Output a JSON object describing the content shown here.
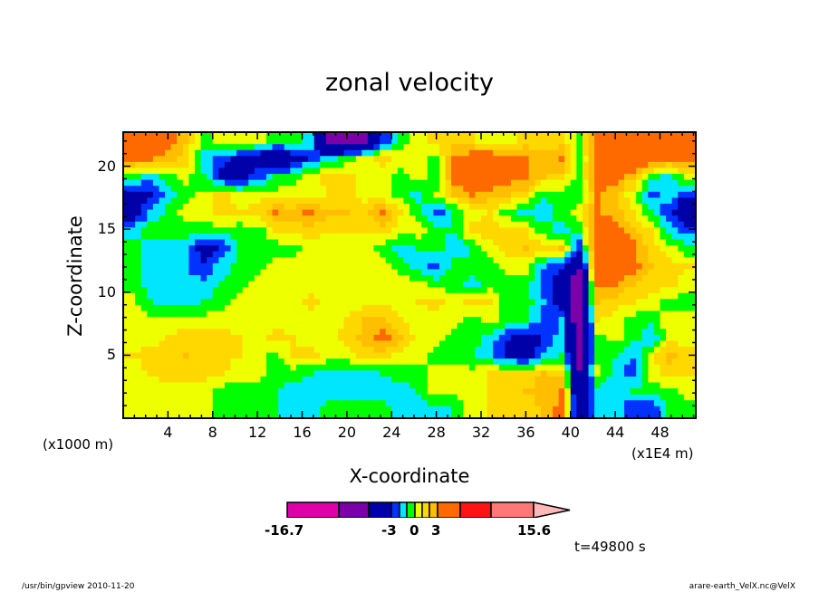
{
  "chart_data": {
    "type": "heatmap",
    "title": "zonal velocity",
    "xlabel": "X-coordinate",
    "ylabel": "Z-coordinate",
    "x_unit_left": "(x1000 m)",
    "x_unit_right": "(x1E4 m)",
    "xlim": [
      0,
      51.2
    ],
    "ylim": [
      0,
      22.7
    ],
    "xticks": [
      "4",
      "8",
      "12",
      "16",
      "20",
      "24",
      "28",
      "32",
      "36",
      "40",
      "44",
      "48"
    ],
    "xtick_values": [
      4,
      8,
      12,
      16,
      20,
      24,
      28,
      32,
      36,
      40,
      44,
      48
    ],
    "yticks": [
      "5",
      "10",
      "15",
      "20"
    ],
    "ytick_values": [
      5,
      10,
      15,
      20
    ],
    "grid_note": "rows top (z high) to bottom, 32 columns across x",
    "values": [
      [
        4.5,
        4.5,
        3.5,
        2,
        -0.5,
        0.5,
        0.5,
        0.5,
        -0.5,
        -0.5,
        -1.5,
        -8,
        -8,
        -7,
        -3,
        -0.5,
        0.5,
        1.5,
        1.5,
        1,
        0.5,
        0.5,
        1.5,
        1,
        1.5,
        -0.5,
        4.5,
        5,
        4.5,
        4.5,
        4.5,
        4.5
      ],
      [
        3.5,
        3,
        2.5,
        1.5,
        -1.5,
        -2.5,
        -3.5,
        -4,
        -6,
        -4,
        -2.5,
        -1.5,
        -0.5,
        0.5,
        1.5,
        0.5,
        0.5,
        -0.5,
        3.5,
        4,
        4.5,
        3.5,
        3,
        2.5,
        3,
        -0.5,
        4,
        4.5,
        5,
        4.5,
        3.5,
        3.5
      ],
      [
        -0.5,
        -1.5,
        -0.5,
        0.5,
        -1,
        -3.5,
        -4,
        -2.5,
        -1,
        -0.5,
        0.5,
        1.5,
        1.5,
        0.5,
        0.5,
        -0.5,
        0.5,
        -1,
        3.5,
        4.5,
        4.5,
        3.5,
        3,
        2,
        1.5,
        -0.5,
        4.5,
        3.5,
        2,
        -0.5,
        -1.5,
        0.5
      ],
      [
        -4,
        -3.5,
        -1.5,
        -0.5,
        0.5,
        1.5,
        0.5,
        0.5,
        0.5,
        0.5,
        0.5,
        1,
        1.5,
        0.5,
        0.5,
        -0.5,
        -1.5,
        0.5,
        2,
        3,
        2.5,
        2,
        1.5,
        -1,
        -0.5,
        -0.5,
        3,
        2,
        0.5,
        -2.5,
        -1.5,
        -3
      ],
      [
        -4,
        -2,
        -0.5,
        0.5,
        0.5,
        1.5,
        1,
        1.5,
        3,
        2.5,
        3.5,
        2,
        2,
        1.5,
        3.5,
        1,
        -0.5,
        -2.5,
        -1,
        0.5,
        1,
        -0.5,
        -1.5,
        -1.5,
        -0.5,
        0.5,
        3,
        2.5,
        1,
        -0.5,
        -3,
        -4.5
      ],
      [
        -1.5,
        -0.5,
        -0.5,
        -0.5,
        -0.5,
        -0.5,
        -0.5,
        -0.5,
        1,
        1.5,
        1.5,
        1,
        1,
        1,
        1.5,
        0.5,
        0.5,
        -0.5,
        -1,
        1.5,
        1.5,
        1.5,
        1,
        -0.5,
        -1.5,
        -0.5,
        4,
        4,
        2,
        1,
        -1.5,
        -2.5
      ],
      [
        -0.5,
        -1.5,
        -1.5,
        -2,
        -3.5,
        -3,
        -1,
        -0.5,
        -0.5,
        -0.5,
        0.5,
        0.5,
        0.5,
        0.5,
        -0.5,
        -1.5,
        -1,
        -0.5,
        -2,
        -1,
        0.5,
        1.5,
        2,
        1.5,
        2,
        -3,
        5,
        5.5,
        3.5,
        1.5,
        0.5,
        -0.5
      ],
      [
        -0.5,
        -1.5,
        -1.5,
        -2,
        -3,
        -1.5,
        -0.5,
        -0.5,
        0.5,
        0.5,
        0.5,
        0.5,
        0.5,
        0.5,
        0.5,
        -0.5,
        -1.5,
        -2.5,
        -0.5,
        -0.5,
        -0.5,
        0.5,
        0.5,
        -2,
        -3,
        -6,
        4.5,
        4,
        3.5,
        2,
        1.5,
        1
      ],
      [
        -0.5,
        -1.5,
        -1.5,
        -1.5,
        -1.5,
        -1,
        -0.5,
        0.5,
        0.5,
        0.5,
        0.5,
        0.5,
        0.5,
        0.5,
        0.5,
        0.5,
        0.5,
        -0.5,
        -0.5,
        -1.5,
        -0.5,
        -0.5,
        -0.5,
        -2.5,
        -4,
        -8,
        3.5,
        3,
        2,
        1.5,
        1.5,
        0.5
      ],
      [
        0.5,
        -1,
        -1.5,
        -1.5,
        -1,
        -0.5,
        0.5,
        0.5,
        0.5,
        0.5,
        1.5,
        0.5,
        0.5,
        0.5,
        0.5,
        0.5,
        1,
        1.5,
        0.5,
        1.5,
        1,
        -0.5,
        -0.5,
        -2,
        -4,
        -7,
        2,
        1.5,
        1,
        0.5,
        -0.5,
        -0.5
      ],
      [
        0.5,
        0.5,
        0.5,
        0.5,
        0.5,
        0.5,
        0.5,
        0.5,
        0.5,
        0.5,
        0.5,
        0.5,
        1,
        2,
        2.5,
        1,
        0.5,
        0.5,
        0.5,
        -0.5,
        0.5,
        -0.5,
        -0.5,
        -2.5,
        -2,
        -8,
        1,
        0.5,
        -0.5,
        -0.5,
        0.5,
        0.5
      ],
      [
        0.5,
        0.5,
        1,
        1.5,
        1.5,
        1.5,
        1,
        0.5,
        1.5,
        1,
        0.5,
        0.5,
        1.5,
        2.5,
        3.5,
        2.5,
        0.5,
        0.5,
        -0.5,
        -0.5,
        -1.5,
        -3,
        -4,
        -3,
        -1.5,
        -8,
        -0.5,
        0.5,
        -0.5,
        -2,
        0.5,
        0.5
      ],
      [
        1,
        1.5,
        1.5,
        2,
        1.5,
        1.5,
        1,
        0.5,
        -0.5,
        1,
        1.5,
        0.5,
        0.5,
        1.5,
        1.5,
        0.5,
        0.5,
        -0.5,
        -0.5,
        -1,
        -1.5,
        -3.5,
        -4,
        -2,
        -1,
        -7,
        -0.5,
        -1,
        -2,
        0.5,
        2.5,
        1.5
      ],
      [
        0.5,
        1,
        1.5,
        1.5,
        1.5,
        1,
        0.5,
        0.5,
        -0.5,
        -0.5,
        -1,
        -1.5,
        -1.5,
        -1.5,
        -1,
        -0.5,
        -0.5,
        0.5,
        0.5,
        0.5,
        1,
        1.5,
        1.5,
        2,
        1.5,
        -6,
        0.5,
        -1.5,
        -2.5,
        0.5,
        1.5,
        1
      ],
      [
        0.5,
        0.5,
        0.5,
        0.5,
        0.5,
        -0.5,
        -0.5,
        -0.5,
        -1,
        -1.5,
        -1.5,
        -1.5,
        -1.5,
        -1.5,
        -1.5,
        -1.5,
        -1,
        0.5,
        0.5,
        0.5,
        1,
        1.5,
        2,
        2.5,
        3,
        -6,
        -1.5,
        -1.5,
        -1,
        -0.5,
        -0.5,
        0.5
      ],
      [
        0.5,
        0.5,
        0.5,
        0.5,
        0.5,
        -0.5,
        -0.5,
        -0.5,
        -1,
        -1.5,
        -1.5,
        -0.5,
        -0.5,
        -0.5,
        -0.5,
        -1.5,
        -1.5,
        -1.5,
        -1,
        0.5,
        1,
        1.5,
        1.5,
        2,
        3.5,
        -5,
        -1.5,
        -1.5,
        -3,
        -3,
        -0.5,
        -0.5
      ]
    ],
    "colorbar": {
      "levels": [
        -16.7,
        -12,
        -6,
        -3,
        -2,
        -1,
        0,
        1,
        2,
        3,
        6,
        9,
        15.6
      ],
      "colors": [
        "#e000a8",
        "#7c00a8",
        "#0000a8",
        "#0033ff",
        "#00e6ff",
        "#00ff00",
        "#eeff00",
        "#ffd800",
        "#ffbf00",
        "#ff6a00",
        "#ff1414",
        "#ff7878"
      ],
      "extend_color": "#ffb8b8",
      "labels": [
        "-16.7",
        "-3",
        "0",
        "3",
        "15.6"
      ]
    }
  },
  "time_label": "t=49800 s",
  "footer": {
    "left": "/usr/bin/gpview  2010-11-20",
    "right": "arare-earth_VelX.nc@VelX"
  }
}
